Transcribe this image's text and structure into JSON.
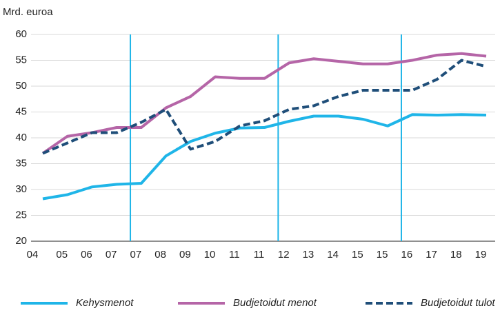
{
  "chart_data": {
    "type": "line",
    "y_label": "Mrd. euroa",
    "categories": [
      "04",
      "05",
      "06",
      "07",
      "07",
      "08",
      "09",
      "10",
      "11",
      "11",
      "12",
      "13",
      "14",
      "15",
      "15",
      "16",
      "17",
      "18",
      "19"
    ],
    "series": [
      {
        "name": "Kehysmenot",
        "color": "#1fb5e8",
        "dashed": false,
        "values": [
          28.2,
          29,
          30.5,
          31,
          31.2,
          36.5,
          39.3,
          40.9,
          41.9,
          42,
          43.2,
          44.2,
          44.2,
          43.6,
          42.3,
          44.5,
          44.4,
          44.5,
          44.4
        ]
      },
      {
        "name": "Budjetoidut menot",
        "color": "#b565a7",
        "dashed": false,
        "values": [
          37,
          40.3,
          41,
          42,
          42,
          45.8,
          48,
          51.8,
          51.5,
          51.5,
          54.5,
          55.3,
          54.8,
          54.3,
          54.3,
          55,
          56,
          56.3,
          55.8
        ]
      },
      {
        "name": "Budjetoidut tulot",
        "color": "#1f4e79",
        "dashed": true,
        "values": [
          37,
          39,
          41,
          41,
          43,
          45.5,
          37.8,
          39.3,
          42.3,
          43.3,
          45.5,
          46.2,
          48,
          49.2,
          49.2,
          49.2,
          51.3,
          55,
          53.8
        ]
      }
    ],
    "ylim": [
      20,
      60
    ],
    "yticks": [
      20,
      25,
      30,
      35,
      40,
      45,
      50,
      55,
      60
    ],
    "grid": true,
    "legend": "bottom"
  }
}
